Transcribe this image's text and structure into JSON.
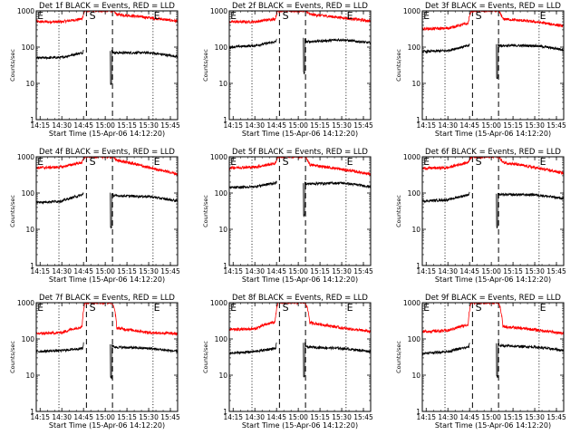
{
  "figure": {
    "xlim": [
      "14:12:20",
      "15:50:00"
    ],
    "x_tick_labels": [
      "14:15",
      "14:30",
      "14:45",
      "15:00",
      "15:15",
      "15:30",
      "15:45"
    ],
    "x_axis_label": "Start Time (15-Apr-06 14:12:20)",
    "y_axis_label": "Counts/sec",
    "y_scale": "log",
    "ylim": [
      1,
      1000
    ],
    "y_tick_labels": [
      "1",
      "10",
      "100",
      "1000"
    ],
    "colors": {
      "events": "#000000",
      "lld": "#ff0000"
    },
    "vertical_lines": {
      "dashed": [
        "14:47:00",
        "15:05:00"
      ],
      "dotted": [
        "14:28:00",
        "15:33:00"
      ]
    },
    "marker_labels": [
      {
        "text": "E",
        "x": "14:13:00"
      },
      {
        "text": "S",
        "x": "14:49:00"
      },
      {
        "text": "E",
        "x": "15:33:30"
      }
    ]
  },
  "chart_data": [
    {
      "type": "line",
      "title": "Det 1f BLACK = Events, RED = LLD",
      "xlabel": "Start Time (15-Apr-06 14:12:20)",
      "ylabel": "Counts/sec",
      "xlim": [
        "14:12:20",
        "15:50:00"
      ],
      "ylim": [
        1,
        1000
      ],
      "yscale": "log",
      "series": [
        {
          "color": "#000000",
          "x": [
            "14:12:20",
            "14:30:00",
            "14:44:30",
            "14:45:00",
            "15:03:30",
            "15:06:00",
            "15:30:00",
            "15:50:00"
          ],
          "y": [
            50,
            52,
            70,
            85,
            85,
            70,
            70,
            55
          ]
        },
        {
          "color": "#ff0000",
          "x": [
            "14:12:20",
            "14:30:00",
            "14:44:00",
            "14:46:00",
            "15:05:00",
            "15:08:00",
            "15:30:00",
            "15:50:00"
          ],
          "y": [
            500,
            500,
            600,
            1000,
            1000,
            800,
            650,
            520
          ]
        }
      ]
    },
    {
      "type": "line",
      "title": "Det 2f BLACK = Events, RED = LLD",
      "xlabel": "Start Time (15-Apr-06 14:12:20)",
      "ylabel": "Counts/sec",
      "xlim": [
        "14:12:20",
        "15:50:00"
      ],
      "ylim": [
        1,
        1000
      ],
      "yscale": "log",
      "series": [
        {
          "color": "#000000",
          "x": [
            "14:12:20",
            "14:30:00",
            "14:44:30",
            "14:45:00",
            "15:03:30",
            "15:06:00",
            "15:30:00",
            "15:50:00"
          ],
          "y": [
            100,
            110,
            140,
            170,
            170,
            140,
            160,
            130
          ]
        },
        {
          "color": "#ff0000",
          "x": [
            "14:12:20",
            "14:30:00",
            "14:44:00",
            "14:46:00",
            "15:05:00",
            "15:08:00",
            "15:30:00",
            "15:50:00"
          ],
          "y": [
            500,
            500,
            600,
            1000,
            1000,
            800,
            650,
            520
          ]
        }
      ]
    },
    {
      "type": "line",
      "title": "Det 3f BLACK = Events, RED = LLD",
      "xlabel": "Start Time (15-Apr-06 14:12:20)",
      "ylabel": "Counts/sec",
      "xlim": [
        "14:12:20",
        "15:50:00"
      ],
      "ylim": [
        1,
        1000
      ],
      "yscale": "log",
      "series": [
        {
          "color": "#000000",
          "x": [
            "14:12:20",
            "14:30:00",
            "14:44:30",
            "14:45:00",
            "15:03:30",
            "15:06:00",
            "15:30:00",
            "15:50:00"
          ],
          "y": [
            75,
            80,
            110,
            120,
            120,
            110,
            110,
            85
          ]
        },
        {
          "color": "#ff0000",
          "x": [
            "14:12:20",
            "14:30:00",
            "14:44:00",
            "14:46:00",
            "15:05:00",
            "15:08:00",
            "15:30:00",
            "15:50:00"
          ],
          "y": [
            320,
            330,
            450,
            1000,
            1000,
            600,
            500,
            380
          ]
        }
      ]
    },
    {
      "type": "line",
      "title": "Det 4f BLACK = Events, RED = LLD",
      "xlabel": "Start Time (15-Apr-06 14:12:20)",
      "ylabel": "Counts/sec",
      "xlim": [
        "14:12:20",
        "15:50:00"
      ],
      "ylim": [
        1,
        1000
      ],
      "yscale": "log",
      "series": [
        {
          "color": "#000000",
          "x": [
            "14:12:20",
            "14:30:00",
            "14:44:30",
            "14:45:00",
            "15:03:30",
            "15:06:00",
            "15:30:00",
            "15:50:00"
          ],
          "y": [
            55,
            60,
            90,
            100,
            100,
            85,
            80,
            60
          ]
        },
        {
          "color": "#ff0000",
          "x": [
            "14:12:20",
            "14:30:00",
            "14:44:00",
            "14:46:00",
            "15:05:00",
            "15:08:00",
            "15:30:00",
            "15:50:00"
          ],
          "y": [
            500,
            520,
            700,
            1000,
            1000,
            800,
            500,
            330
          ]
        }
      ]
    },
    {
      "type": "line",
      "title": "Det 5f BLACK = Events, RED = LLD",
      "xlabel": "Start Time (15-Apr-06 14:12:20)",
      "ylabel": "Counts/sec",
      "xlim": [
        "14:12:20",
        "15:50:00"
      ],
      "ylim": [
        1,
        1000
      ],
      "yscale": "log",
      "series": [
        {
          "color": "#000000",
          "x": [
            "14:12:20",
            "14:30:00",
            "14:44:30",
            "14:45:00",
            "15:03:30",
            "15:06:00",
            "15:30:00",
            "15:50:00"
          ],
          "y": [
            140,
            150,
            190,
            200,
            200,
            180,
            190,
            150
          ]
        },
        {
          "color": "#ff0000",
          "x": [
            "14:12:20",
            "14:30:00",
            "14:44:00",
            "14:46:00",
            "15:05:00",
            "15:08:00",
            "15:30:00",
            "15:50:00"
          ],
          "y": [
            500,
            520,
            650,
            1000,
            1000,
            600,
            450,
            330
          ]
        }
      ]
    },
    {
      "type": "line",
      "title": "Det 6f BLACK = Events, RED = LLD",
      "xlabel": "Start Time (15-Apr-06 14:12:20)",
      "ylabel": "Counts/sec",
      "xlim": [
        "14:12:20",
        "15:50:00"
      ],
      "ylim": [
        1,
        1000
      ],
      "yscale": "log",
      "series": [
        {
          "color": "#000000",
          "x": [
            "14:12:20",
            "14:30:00",
            "14:44:30",
            "14:45:00",
            "15:03:30",
            "15:06:00",
            "15:30:00",
            "15:50:00"
          ],
          "y": [
            60,
            65,
            90,
            100,
            100,
            90,
            90,
            70
          ]
        },
        {
          "color": "#ff0000",
          "x": [
            "14:12:20",
            "14:30:00",
            "14:44:00",
            "14:46:00",
            "15:05:00",
            "15:08:00",
            "15:30:00",
            "15:50:00"
          ],
          "y": [
            480,
            500,
            700,
            1000,
            1000,
            700,
            500,
            350
          ]
        }
      ]
    },
    {
      "type": "line",
      "title": "Det 7f BLACK = Events, RED = LLD",
      "xlabel": "Start Time (15-Apr-06 14:12:20)",
      "ylabel": "Counts/sec",
      "xlim": [
        "14:12:20",
        "15:50:00"
      ],
      "ylim": [
        1,
        1000
      ],
      "yscale": "log",
      "series": [
        {
          "color": "#000000",
          "x": [
            "14:12:20",
            "14:30:00",
            "14:44:30",
            "14:45:00",
            "15:03:30",
            "15:06:00",
            "15:30:00",
            "15:50:00"
          ],
          "y": [
            45,
            48,
            55,
            75,
            75,
            60,
            55,
            45
          ]
        },
        {
          "color": "#ff0000",
          "x": [
            "14:12:20",
            "14:30:00",
            "14:44:00",
            "14:46:00",
            "15:05:00",
            "15:08:00",
            "15:30:00",
            "15:50:00"
          ],
          "y": [
            140,
            150,
            220,
            1000,
            1000,
            200,
            150,
            140
          ]
        }
      ]
    },
    {
      "type": "line",
      "title": "Det 8f BLACK = Events, RED = LLD",
      "xlabel": "Start Time (15-Apr-06 14:12:20)",
      "ylabel": "Counts/sec",
      "xlim": [
        "14:12:20",
        "15:50:00"
      ],
      "ylim": [
        1,
        1000
      ],
      "yscale": "log",
      "series": [
        {
          "color": "#000000",
          "x": [
            "14:12:20",
            "14:30:00",
            "14:44:30",
            "14:45:00",
            "15:03:30",
            "15:06:00",
            "15:30:00",
            "15:50:00"
          ],
          "y": [
            40,
            45,
            55,
            80,
            80,
            60,
            55,
            45
          ]
        },
        {
          "color": "#ff0000",
          "x": [
            "14:12:20",
            "14:30:00",
            "14:44:00",
            "14:46:00",
            "15:05:00",
            "15:08:00",
            "15:30:00",
            "15:50:00"
          ],
          "y": [
            180,
            190,
            300,
            1000,
            1000,
            280,
            200,
            160
          ]
        }
      ]
    },
    {
      "type": "line",
      "title": "Det 9f BLACK = Events, RED = LLD",
      "xlabel": "Start Time (15-Apr-06 14:12:20)",
      "ylabel": "Counts/sec",
      "xlim": [
        "14:12:20",
        "15:50:00"
      ],
      "ylim": [
        1,
        1000
      ],
      "yscale": "log",
      "series": [
        {
          "color": "#000000",
          "x": [
            "14:12:20",
            "14:30:00",
            "14:44:30",
            "14:45:00",
            "15:03:30",
            "15:06:00",
            "15:30:00",
            "15:50:00"
          ],
          "y": [
            40,
            45,
            60,
            80,
            80,
            65,
            60,
            48
          ]
        },
        {
          "color": "#ff0000",
          "x": [
            "14:12:20",
            "14:30:00",
            "14:44:00",
            "14:46:00",
            "15:05:00",
            "15:08:00",
            "15:30:00",
            "15:50:00"
          ],
          "y": [
            160,
            170,
            250,
            1000,
            1000,
            220,
            180,
            140
          ]
        }
      ]
    }
  ]
}
